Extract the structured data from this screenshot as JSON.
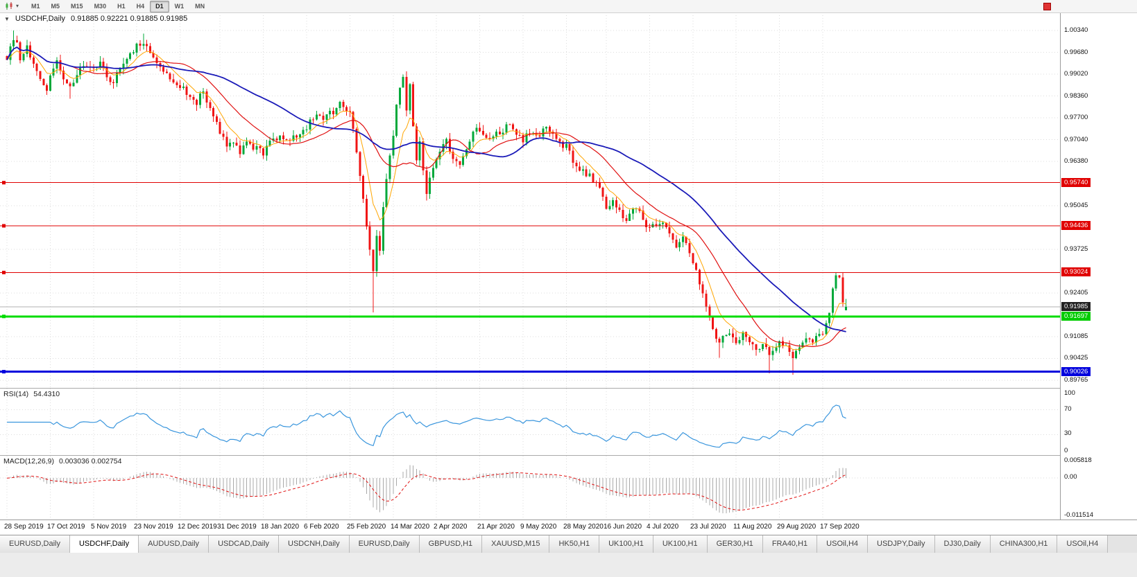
{
  "toolbar": {
    "timeframes": [
      "M1",
      "M5",
      "M15",
      "M30",
      "H1",
      "H4",
      "D1",
      "W1",
      "MN"
    ],
    "active_timeframe": "D1"
  },
  "chart": {
    "symbol_title": "USDCHF,Daily",
    "ohlc_text": "0.91885 0.92221 0.91885 0.91985",
    "current_price": 0.91985,
    "colors": {
      "candle_up": "#00a83a",
      "candle_down": "#f01414",
      "grid": "#dcdcdc",
      "current_line": "#b0b0b0"
    },
    "axis_labels": [
      {
        "text": "1.00340",
        "price": 1.0034
      },
      {
        "text": "0.99680",
        "price": 0.9968
      },
      {
        "text": "0.99020",
        "price": 0.9902
      },
      {
        "text": "0.98360",
        "price": 0.9836
      },
      {
        "text": "0.97700",
        "price": 0.977
      },
      {
        "text": "0.97040",
        "price": 0.9704
      },
      {
        "text": "0.96380",
        "price": 0.9638
      },
      {
        "text": "0.95045",
        "price": 0.95045
      },
      {
        "text": "0.93725",
        "price": 0.93725
      },
      {
        "text": "0.92405",
        "price": 0.92405
      },
      {
        "text": "0.91085",
        "price": 0.91085
      },
      {
        "text": "0.90425",
        "price": 0.90425
      },
      {
        "text": "0.89765",
        "price": 0.89765
      }
    ],
    "price_badges": [
      {
        "text": "0.95740",
        "price": 0.9574,
        "bg": "#e00000",
        "fg": "#ffffff"
      },
      {
        "text": "0.94436",
        "price": 0.94436,
        "bg": "#e00000",
        "fg": "#ffffff"
      },
      {
        "text": "0.93024",
        "price": 0.93024,
        "bg": "#e00000",
        "fg": "#ffffff"
      },
      {
        "text": "0.91985",
        "price": 0.91985,
        "bg": "#222222",
        "fg": "#ffffff"
      },
      {
        "text": "0.91697",
        "price": 0.91697,
        "bg": "#00cc00",
        "fg": "#ffffff"
      },
      {
        "text": "0.90026",
        "price": 0.90026,
        "bg": "#0000dd",
        "fg": "#ffffff"
      }
    ],
    "hlines": [
      {
        "price": 0.9574,
        "color": "#e00000",
        "width": 1
      },
      {
        "price": 0.94436,
        "color": "#e00000",
        "width": 1
      },
      {
        "price": 0.93024,
        "color": "#e00000",
        "width": 1
      },
      {
        "price": 0.91697,
        "color": "#00dd00",
        "width": 3
      },
      {
        "price": 0.90026,
        "color": "#0000dd",
        "width": 3
      }
    ],
    "dates": [
      {
        "label": "28 Sep 2019",
        "i": 0
      },
      {
        "label": "17 Oct 2019",
        "i": 13
      },
      {
        "label": "5 Nov 2019",
        "i": 26
      },
      {
        "label": "23 Nov 2019",
        "i": 39
      },
      {
        "label": "12 Dec 2019",
        "i": 52
      },
      {
        "label": "31 Dec 2019",
        "i": 64
      },
      {
        "label": "18 Jan 2020",
        "i": 77
      },
      {
        "label": "6 Feb 2020",
        "i": 90
      },
      {
        "label": "25 Feb 2020",
        "i": 103
      },
      {
        "label": "14 Mar 2020",
        "i": 116
      },
      {
        "label": "2 Apr 2020",
        "i": 129
      },
      {
        "label": "21 Apr 2020",
        "i": 142
      },
      {
        "label": "9 May 2020",
        "i": 155
      },
      {
        "label": "28 May 2020",
        "i": 168
      },
      {
        "label": "16 Jun 2020",
        "i": 180
      },
      {
        "label": "4 Jul 2020",
        "i": 193
      },
      {
        "label": "23 Jul 2020",
        "i": 206
      },
      {
        "label": "11 Aug 2020",
        "i": 219
      },
      {
        "label": "29 Aug 2020",
        "i": 232
      },
      {
        "label": "17 Sep 2020",
        "i": 245
      }
    ]
  },
  "rsi": {
    "name": "RSI(14)",
    "value": "54.4310",
    "levels": [
      30,
      70
    ],
    "axis": [
      {
        "text": "100",
        "v": 100
      },
      {
        "text": "70",
        "v": 70
      },
      {
        "text": "30",
        "v": 30
      },
      {
        "text": "0",
        "v": 0
      }
    ],
    "color": "#3a96dd"
  },
  "macd": {
    "name": "MACD(12,26,9)",
    "values": "0.003036 0.002754",
    "axis": [
      {
        "text": "0.005818",
        "v": 0.005818
      },
      {
        "text": "0.00",
        "v": 0
      },
      {
        "text": "-0.011514",
        "v": -0.011514
      }
    ],
    "hist_color": "#a8a8a8",
    "signal_color": "#e01010"
  },
  "tabs": [
    {
      "label": "EURUSD,Daily"
    },
    {
      "label": "USDCHF,Daily",
      "active": true
    },
    {
      "label": "AUDUSD,Daily"
    },
    {
      "label": "USDCAD,Daily"
    },
    {
      "label": "USDCNH,Daily"
    },
    {
      "label": "EURUSD,Daily"
    },
    {
      "label": "GBPUSD,H1"
    },
    {
      "label": "XAUUSD,M15"
    },
    {
      "label": "HK50,H1"
    },
    {
      "label": "UK100,H1"
    },
    {
      "label": "UK100,H1"
    },
    {
      "label": "GER30,H1"
    },
    {
      "label": "FRA40,H1"
    },
    {
      "label": "USOil,H4"
    },
    {
      "label": "USDJPY,Daily"
    },
    {
      "label": "DJ30,Daily"
    },
    {
      "label": "CHINA300,H1"
    },
    {
      "label": "USOil,H4"
    }
  ],
  "chart_data": {
    "type": "candlestick",
    "symbol": "USDCHF",
    "timeframe": "Daily",
    "title": "USDCHF,Daily",
    "last_bar": {
      "open": 0.91885,
      "high": 0.92221,
      "low": 0.91885,
      "close": 0.91985
    },
    "view_price_max": 1.00885,
    "view_price_min": 0.89535,
    "candle_count": 253,
    "close_anchors": [
      [
        0,
        0.9945
      ],
      [
        1,
        0.9985
      ],
      [
        3,
        1.0005
      ],
      [
        4,
        0.995
      ],
      [
        6,
        0.9985
      ],
      [
        8,
        0.9935
      ],
      [
        10,
        0.988
      ],
      [
        12,
        0.986
      ],
      [
        13,
        0.99
      ],
      [
        15,
        0.9935
      ],
      [
        17,
        0.9895
      ],
      [
        19,
        0.9855
      ],
      [
        21,
        0.9905
      ],
      [
        23,
        0.9925
      ],
      [
        26,
        0.9915
      ],
      [
        28,
        0.9945
      ],
      [
        30,
        0.99
      ],
      [
        32,
        0.9875
      ],
      [
        34,
        0.9915
      ],
      [
        36,
        0.994
      ],
      [
        39,
        0.9985
      ],
      [
        41,
        0.9998
      ],
      [
        43,
        0.9975
      ],
      [
        45,
        0.994
      ],
      [
        48,
        0.9905
      ],
      [
        52,
        0.987
      ],
      [
        55,
        0.9838
      ],
      [
        57,
        0.982
      ],
      [
        59,
        0.9845
      ],
      [
        61,
        0.98
      ],
      [
        63,
        0.9765
      ],
      [
        64,
        0.972
      ],
      [
        66,
        0.969
      ],
      [
        68,
        0.9705
      ],
      [
        70,
        0.9665
      ],
      [
        72,
        0.969
      ],
      [
        75,
        0.9675
      ],
      [
        77,
        0.966
      ],
      [
        79,
        0.9695
      ],
      [
        82,
        0.972
      ],
      [
        85,
        0.97
      ],
      [
        88,
        0.973
      ],
      [
        90,
        0.9745
      ],
      [
        93,
        0.9775
      ],
      [
        95,
        0.976
      ],
      [
        98,
        0.979
      ],
      [
        100,
        0.9815
      ],
      [
        102,
        0.98
      ],
      [
        103,
        0.978
      ],
      [
        104,
        0.973
      ],
      [
        105,
        0.9665
      ],
      [
        106,
        0.96
      ],
      [
        107,
        0.952
      ],
      [
        108,
        0.945
      ],
      [
        109,
        0.938
      ],
      [
        110,
        0.93
      ],
      [
        111,
        0.942
      ],
      [
        112,
        0.936
      ],
      [
        113,
        0.95
      ],
      [
        114,
        0.958
      ],
      [
        115,
        0.965
      ],
      [
        116,
        0.972
      ],
      [
        117,
        0.98
      ],
      [
        118,
        0.986
      ],
      [
        119,
        0.9885
      ],
      [
        120,
        0.98
      ],
      [
        121,
        0.9865
      ],
      [
        122,
        0.974
      ],
      [
        123,
        0.964
      ],
      [
        124,
        0.969
      ],
      [
        125,
        0.96
      ],
      [
        126,
        0.9545
      ],
      [
        128,
        0.962
      ],
      [
        130,
        0.966
      ],
      [
        132,
        0.97
      ],
      [
        134,
        0.965
      ],
      [
        136,
        0.962
      ],
      [
        138,
        0.968
      ],
      [
        140,
        0.972
      ],
      [
        142,
        0.974
      ],
      [
        145,
        0.97
      ],
      [
        148,
        0.973
      ],
      [
        151,
        0.9748
      ],
      [
        153,
        0.9722
      ],
      [
        155,
        0.97
      ],
      [
        157,
        0.973
      ],
      [
        160,
        0.9718
      ],
      [
        162,
        0.9742
      ],
      [
        164,
        0.972
      ],
      [
        166,
        0.9698
      ],
      [
        168,
        0.968
      ],
      [
        170,
        0.9645
      ],
      [
        172,
        0.962
      ],
      [
        174,
        0.96
      ],
      [
        176,
        0.9582
      ],
      [
        178,
        0.956
      ],
      [
        180,
        0.9502
      ],
      [
        182,
        0.9525
      ],
      [
        184,
        0.9482
      ],
      [
        186,
        0.946
      ],
      [
        188,
        0.9502
      ],
      [
        190,
        0.948
      ],
      [
        193,
        0.9432
      ],
      [
        195,
        0.9455
      ],
      [
        197,
        0.9463
      ],
      [
        199,
        0.942
      ],
      [
        201,
        0.9382
      ],
      [
        203,
        0.9402
      ],
      [
        205,
        0.936
      ],
      [
        207,
        0.93
      ],
      [
        209,
        0.923
      ],
      [
        211,
        0.916
      ],
      [
        213,
        0.911
      ],
      [
        214,
        0.9082
      ],
      [
        216,
        0.9122
      ],
      [
        218,
        0.91
      ],
      [
        219,
        0.9082
      ],
      [
        221,
        0.9132
      ],
      [
        223,
        0.91
      ],
      [
        225,
        0.9062
      ],
      [
        227,
        0.9092
      ],
      [
        229,
        0.905
      ],
      [
        231,
        0.9082
      ],
      [
        232,
        0.9102
      ],
      [
        234,
        0.9072
      ],
      [
        236,
        0.9052
      ],
      [
        238,
        0.9082
      ],
      [
        240,
        0.9112
      ],
      [
        242,
        0.9092
      ],
      [
        244,
        0.9122
      ],
      [
        245,
        0.9112
      ],
      [
        246,
        0.9145
      ],
      [
        247,
        0.918
      ],
      [
        248,
        0.9252
      ],
      [
        249,
        0.9295
      ],
      [
        250,
        0.929
      ],
      [
        251,
        0.9212
      ],
      [
        252,
        0.91985
      ]
    ],
    "wick_overrides": [
      [
        2,
        "high",
        1.0034
      ],
      [
        19,
        "low",
        0.9828
      ],
      [
        41,
        "high",
        1.0025
      ],
      [
        110,
        "low",
        0.9182
      ],
      [
        119,
        "high",
        0.9901
      ],
      [
        126,
        "low",
        0.952
      ],
      [
        214,
        "low",
        0.9045
      ],
      [
        229,
        "low",
        0.8997
      ],
      [
        236,
        "low",
        0.8993
      ],
      [
        249,
        "high",
        0.9302
      ]
    ],
    "moving_averages": [
      {
        "name": "fast",
        "period": 8,
        "method": "ema",
        "color": "#ffa500"
      },
      {
        "name": "mid",
        "period": 20,
        "method": "sma",
        "color": "#e01010"
      },
      {
        "name": "slow",
        "period": 45,
        "method": "sma",
        "color": "#1a1ab8"
      }
    ],
    "indicators": [
      {
        "name": "RSI",
        "period": 14,
        "current": 54.431
      },
      {
        "name": "MACD",
        "fast": 12,
        "slow": 26,
        "signal": 9,
        "current_macd": 0.003036,
        "current_signal": 0.002754
      }
    ]
  }
}
